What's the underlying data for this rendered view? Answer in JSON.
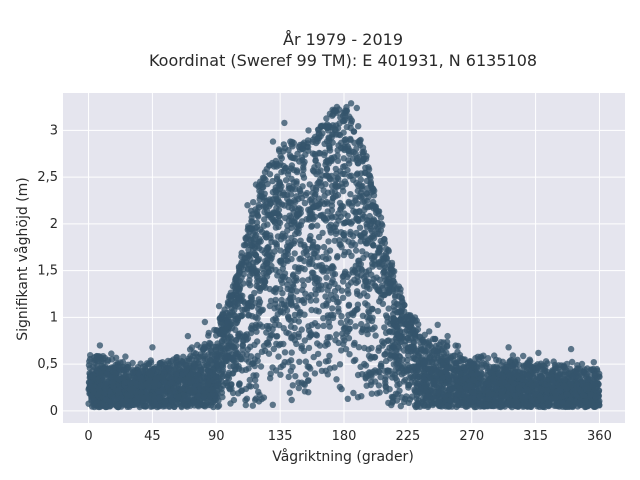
{
  "chart_data": {
    "type": "scatter",
    "title_line1": "År 1979 - 2019",
    "title_line2": "Koordinat (Sweref 99 TM): E 401931, N 6135108",
    "xlabel": "Vågriktning (grader)",
    "ylabel": "Signifikant våghöjd (m)",
    "xlim": [
      -18,
      378
    ],
    "ylim": [
      -0.13,
      3.4
    ],
    "xticks": [
      0,
      45,
      90,
      135,
      180,
      225,
      270,
      315,
      360
    ],
    "xtick_labels": [
      "0",
      "45",
      "90",
      "135",
      "180",
      "225",
      "270",
      "315",
      "360"
    ],
    "yticks": [
      0,
      0.5,
      1,
      1.5,
      2,
      2.5,
      3
    ],
    "ytick_labels": [
      "0",
      "0,5",
      "1",
      "1,5",
      "2",
      "2,5",
      "3"
    ],
    "grid": true,
    "legend": "none",
    "colors": {
      "point": "#34546b",
      "plot_bg": "#e5e5ee",
      "grid": "#ffffff"
    },
    "envelope": {
      "direction": [
        0,
        10,
        30,
        60,
        80,
        95,
        105,
        115,
        125,
        140,
        155,
        170,
        180,
        190,
        200,
        210,
        225,
        240,
        260,
        290,
        330,
        360
      ],
      "max_height": [
        0.62,
        0.65,
        0.55,
        0.62,
        0.78,
        1.05,
        1.5,
        2.2,
        2.65,
        2.9,
        2.9,
        3.2,
        3.3,
        3.05,
        2.5,
        1.8,
        1.05,
        0.9,
        0.72,
        0.6,
        0.58,
        0.5
      ]
    },
    "outliers": [
      {
        "x": 138,
        "y": 3.08
      },
      {
        "x": 165,
        "y": 3.05
      },
      {
        "x": 172,
        "y": 3.22
      },
      {
        "x": 175,
        "y": 3.25
      },
      {
        "x": 185,
        "y": 3.29
      },
      {
        "x": 189,
        "y": 3.24
      },
      {
        "x": 181,
        "y": 3.15
      },
      {
        "x": 155,
        "y": 3.0
      },
      {
        "x": 130,
        "y": 2.88
      },
      {
        "x": 143,
        "y": 2.85
      },
      {
        "x": 118,
        "y": 2.42
      },
      {
        "x": 112,
        "y": 2.2
      },
      {
        "x": 240,
        "y": 0.85
      },
      {
        "x": 253,
        "y": 0.8
      },
      {
        "x": 296,
        "y": 0.68
      },
      {
        "x": 317,
        "y": 0.62
      },
      {
        "x": 340,
        "y": 0.66
      },
      {
        "x": 356,
        "y": 0.52
      },
      {
        "x": 92,
        "y": 1.12
      },
      {
        "x": 70,
        "y": 0.8
      },
      {
        "x": 45,
        "y": 0.68
      },
      {
        "x": 8,
        "y": 0.7
      },
      {
        "x": 26,
        "y": 0.58
      },
      {
        "x": 230,
        "y": 1.0
      },
      {
        "x": 246,
        "y": 0.92
      },
      {
        "x": 82,
        "y": 0.95
      },
      {
        "x": 200,
        "y": 2.2
      },
      {
        "x": 195,
        "y": 2.6
      }
    ]
  }
}
